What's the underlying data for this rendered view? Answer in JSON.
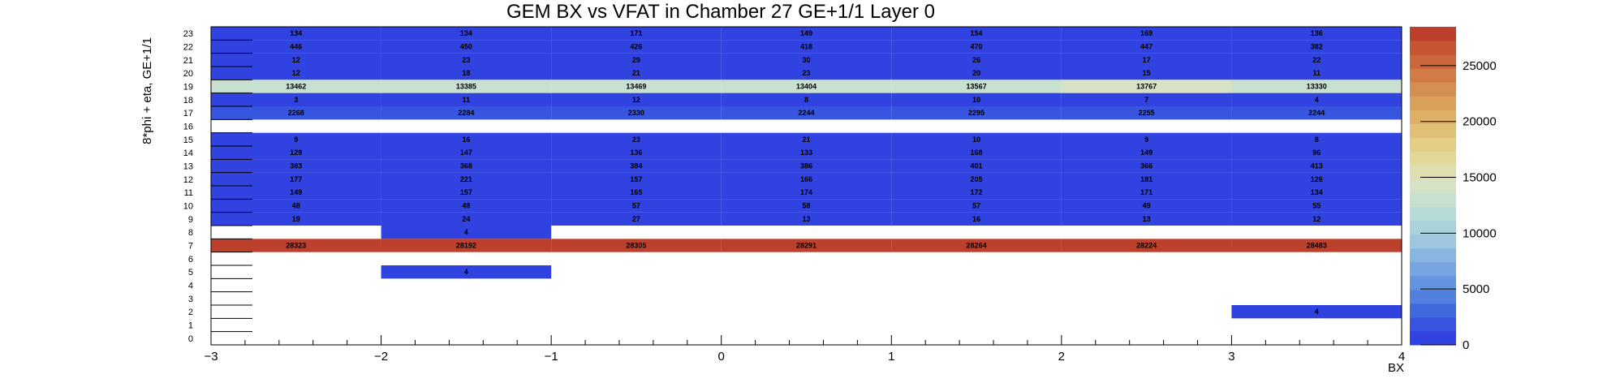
{
  "chart_data": {
    "type": "heatmap",
    "title": "GEM BX vs VFAT in Chamber 27 GE+1/1 Layer 0",
    "xlabel": "BX",
    "ylabel": "8*phi + eta, GE+1/1",
    "x_edges": [
      -3,
      -2,
      -1,
      0,
      1,
      2,
      3,
      4
    ],
    "xlim": [
      -3,
      4
    ],
    "ylim": [
      0,
      24
    ],
    "x_ticks": [
      "−3",
      "−2",
      "−1",
      "0",
      "1",
      "2",
      "3",
      "4"
    ],
    "y_ticks": [
      "0",
      "1",
      "2",
      "3",
      "4",
      "5",
      "6",
      "7",
      "8",
      "9",
      "10",
      "11",
      "12",
      "13",
      "14",
      "15",
      "16",
      "17",
      "18",
      "19",
      "20",
      "21",
      "22",
      "23"
    ],
    "zlim": [
      0,
      28483
    ],
    "colorbar_ticks": [
      0,
      5000,
      10000,
      15000,
      20000,
      25000
    ],
    "colorbar_labels": [
      "0",
      "5000",
      "10000",
      "15000",
      "20000",
      "25000"
    ],
    "rows": [
      {
        "y": 23,
        "values": [
          134,
          134,
          171,
          149,
          154,
          169,
          136
        ]
      },
      {
        "y": 22,
        "values": [
          446,
          450,
          426,
          418,
          470,
          447,
          382
        ]
      },
      {
        "y": 21,
        "values": [
          12,
          23,
          29,
          30,
          26,
          17,
          22
        ]
      },
      {
        "y": 20,
        "values": [
          12,
          18,
          21,
          23,
          20,
          15,
          11
        ]
      },
      {
        "y": 19,
        "values": [
          13462,
          13385,
          13469,
          13404,
          13567,
          13767,
          13330
        ]
      },
      {
        "y": 18,
        "values": [
          3,
          11,
          12,
          8,
          10,
          7,
          4
        ]
      },
      {
        "y": 17,
        "values": [
          2268,
          2284,
          2330,
          2244,
          2295,
          2255,
          2244
        ]
      },
      {
        "y": 15,
        "values": [
          9,
          16,
          23,
          21,
          10,
          9,
          8
        ]
      },
      {
        "y": 14,
        "values": [
          129,
          147,
          136,
          133,
          168,
          149,
          96
        ]
      },
      {
        "y": 13,
        "values": [
          383,
          368,
          384,
          386,
          401,
          366,
          413
        ]
      },
      {
        "y": 12,
        "values": [
          177,
          221,
          157,
          166,
          205,
          181,
          126
        ]
      },
      {
        "y": 11,
        "values": [
          149,
          157,
          165,
          174,
          172,
          171,
          134
        ]
      },
      {
        "y": 10,
        "values": [
          48,
          48,
          57,
          58,
          57,
          49,
          55
        ]
      },
      {
        "y": 9,
        "values": [
          19,
          24,
          27,
          13,
          16,
          13,
          12
        ]
      },
      {
        "y": 8,
        "values": [
          null,
          4,
          null,
          null,
          null,
          null,
          null
        ]
      },
      {
        "y": 7,
        "values": [
          28323,
          28192,
          28305,
          28291,
          28264,
          28224,
          28483
        ]
      },
      {
        "y": 5,
        "values": [
          null,
          4,
          null,
          null,
          null,
          null,
          null
        ]
      },
      {
        "y": 2,
        "values": [
          null,
          null,
          null,
          null,
          null,
          null,
          4
        ]
      }
    ],
    "palette": [
      "#3042e0",
      "#3855e0",
      "#4169de",
      "#5280de",
      "#6494e0",
      "#77a5e1",
      "#89b6e0",
      "#9cc7de",
      "#a9d3dc",
      "#b7dbd6",
      "#c8e0d0",
      "#d6e2c3",
      "#dedfae",
      "#e2d89a",
      "#e3ce85",
      "#e0c074",
      "#ddb167",
      "#d9a15c",
      "#d58f52",
      "#d17b46",
      "#cc673b",
      "#c65533",
      "#bd402d"
    ]
  }
}
